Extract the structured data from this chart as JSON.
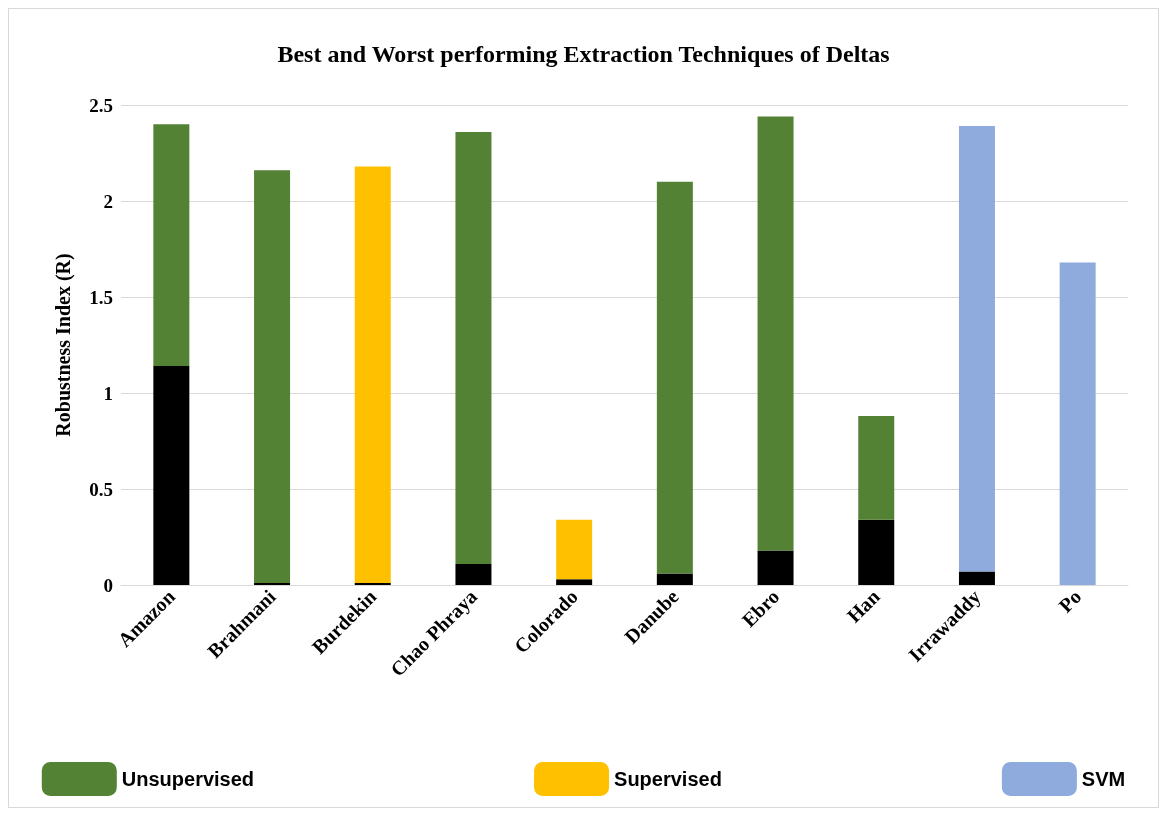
{
  "chart_data": {
    "type": "bar",
    "title": "Best and Worst performing Extraction Techniques of Deltas",
    "ylabel": "Robustness Index (R)",
    "categories": [
      "Amazon",
      "Brahmani",
      "Burdekin",
      "Chao Phraya",
      "Colorado",
      "Danube",
      "Ebro",
      "Han",
      "Irrawaddy",
      "Po"
    ],
    "stacked": true,
    "series": [
      {
        "color": "#000000",
        "values": [
          1.14,
          0.01,
          0.01,
          0.11,
          0.03,
          0.06,
          0.18,
          0.34,
          0.07,
          0
        ]
      },
      {
        "name": "Unsupervised",
        "color": "#548235",
        "values": [
          1.26,
          2.15,
          null,
          2.25,
          null,
          2.04,
          2.26,
          0.54,
          null,
          null
        ]
      },
      {
        "name": "Supervised",
        "color": "#ffc000",
        "values": [
          null,
          null,
          2.17,
          null,
          0.31,
          null,
          null,
          null,
          null,
          null
        ]
      },
      {
        "name": "SVM",
        "color": "#8faadc",
        "values": [
          null,
          null,
          null,
          null,
          null,
          null,
          null,
          null,
          2.32,
          1.68
        ]
      }
    ],
    "ylim": [
      0,
      2.5
    ],
    "yticks": [
      0,
      0.5,
      1,
      1.5,
      2,
      2.5
    ],
    "grid": "y",
    "legend": "bottom"
  }
}
